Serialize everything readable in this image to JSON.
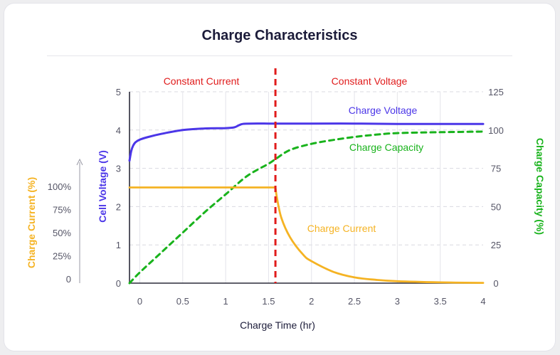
{
  "chart_data": {
    "type": "line",
    "title": "Charge Characteristics",
    "xlabel": "Charge Time (hr)",
    "xlim": [
      -0.12,
      4
    ],
    "x_ticks": [
      0,
      0.5,
      1,
      1.5,
      2,
      2.5,
      3,
      3.5,
      4
    ],
    "x_tick_labels": [
      "0",
      "0.5",
      "1",
      "1.5",
      "2",
      "2.5",
      "3",
      "3.5",
      "4"
    ],
    "y_left": {
      "label": "Cell Voltage (V)",
      "color": "#4b36e8",
      "ylim": [
        0,
        5
      ],
      "ticks": [
        0,
        1,
        2,
        3,
        4,
        5
      ],
      "tick_labels": [
        "0",
        "1",
        "2",
        "3",
        "4",
        "5"
      ]
    },
    "y_left_outer": {
      "label": "Charge Current (%)",
      "color": "#f5b323",
      "ticks": [
        0,
        25,
        50,
        75,
        100
      ],
      "tick_labels": [
        "0",
        "25%",
        "50%",
        "75%",
        "100%"
      ]
    },
    "y_right": {
      "label": "Charge Capacity (%)",
      "color": "#19b31c",
      "ylim": [
        0,
        125
      ],
      "ticks": [
        0,
        25,
        50,
        75,
        100,
        125
      ],
      "tick_labels": [
        "0",
        "25",
        "50",
        "75",
        "100",
        "125"
      ]
    },
    "grid": true,
    "regions": {
      "divider_x": 1.58,
      "divider_color": "#e01b1b",
      "left_label": "Constant Current",
      "right_label": "Constant Voltage"
    },
    "series": [
      {
        "name": "Charge Voltage",
        "axis": "y_left",
        "style": "solid",
        "color": "#4b36e8",
        "x": [
          -0.12,
          -0.1,
          -0.08,
          -0.05,
          0,
          0.1,
          0.25,
          0.5,
          0.75,
          1.0,
          1.1,
          1.15,
          1.2,
          1.3,
          1.5,
          1.58,
          2.0,
          2.5,
          3.0,
          3.5,
          4.0
        ],
        "y": [
          3.2,
          3.45,
          3.58,
          3.68,
          3.75,
          3.82,
          3.9,
          4.0,
          4.04,
          4.05,
          4.07,
          4.12,
          4.16,
          4.17,
          4.17,
          4.17,
          4.17,
          4.17,
          4.16,
          4.16,
          4.16
        ]
      },
      {
        "name": "Charge Capacity",
        "axis": "y_right",
        "style": "dashed",
        "color": "#19b31c",
        "x": [
          -0.12,
          0,
          0.25,
          0.5,
          0.75,
          1.0,
          1.25,
          1.5,
          1.58,
          1.75,
          2.0,
          2.25,
          2.5,
          2.75,
          3.0,
          3.5,
          4.0
        ],
        "y": [
          0,
          7,
          20,
          33,
          46,
          58,
          70,
          78,
          81,
          87,
          91,
          93.5,
          95.5,
          97,
          98,
          98.6,
          99
        ]
      },
      {
        "name": "Charge Current",
        "axis": "y_left_outer",
        "style": "solid",
        "color": "#f5b323",
        "x": [
          -0.12,
          0.5,
          1.0,
          1.58,
          1.6,
          1.65,
          1.75,
          1.9,
          2.0,
          2.25,
          2.5,
          2.75,
          3.0,
          3.5,
          4.0
        ],
        "y": [
          100,
          100,
          100,
          100,
          88,
          68,
          48,
          30,
          23,
          12,
          6,
          3.5,
          2,
          0.8,
          0.3
        ]
      }
    ],
    "annotations": [
      {
        "text": "Charge Voltage",
        "color": "#4b36e8",
        "near": "voltage-curve"
      },
      {
        "text": "Charge Capacity",
        "color": "#19b31c",
        "near": "capacity-curve"
      },
      {
        "text": "Charge Current",
        "color": "#f5b323",
        "near": "current-curve"
      }
    ]
  }
}
